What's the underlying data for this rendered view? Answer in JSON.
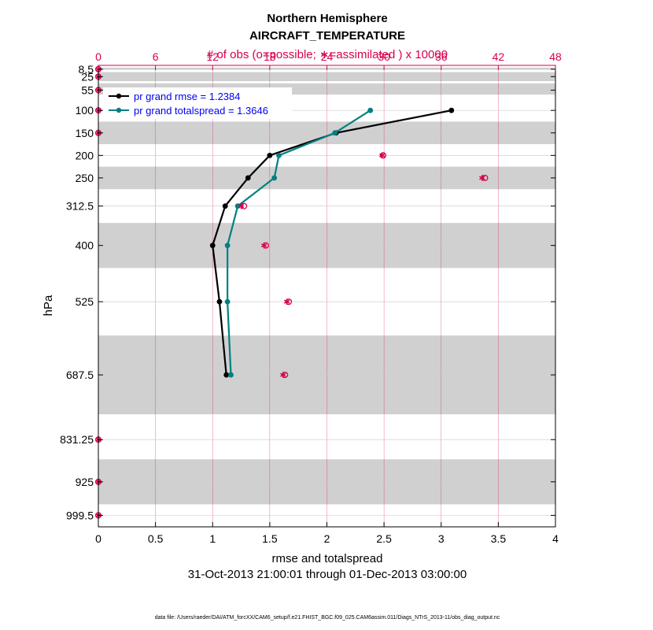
{
  "colors": {
    "rmse": "#000000",
    "spread": "#008080",
    "obs": "#d6004f",
    "band": "#d0d0d0",
    "grid_bottom": "#cfcfcf",
    "legend_text": "#0000ee"
  },
  "footer": "data file: /Users/raeder/DAI/ATM_forcXX/CAM6_setup/f.e21.FHIST_BGC.f09_025.CAM6assim.011/Diags_NTrS_2013-11/obs_diag_output.nc",
  "chart_data": {
    "type": "line",
    "title": "Northern Hemisphere",
    "subtitle": "AIRCRAFT_TEMPERATURE",
    "top_axis_label": "# of obs (o=possible; ∗=assimilated ) x 10000",
    "xlabel": "rmse and totalspread",
    "ylabel": "hPa",
    "date_range": "31-Oct-2013 21:00:01 through 01-Dec-2013 03:00:00",
    "xlim": [
      0,
      4
    ],
    "x_ticks": [
      "0",
      "0.5",
      "1",
      "1.5",
      "2",
      "2.5",
      "3",
      "3.5",
      "4"
    ],
    "top_xlim": [
      0,
      48
    ],
    "top_ticks": [
      "0",
      "6",
      "12",
      "18",
      "24",
      "30",
      "36",
      "42",
      "48"
    ],
    "levels": [
      8.5,
      25,
      55,
      100,
      150,
      200,
      250,
      312.5,
      400,
      525,
      687.5,
      831.25,
      925,
      999.5
    ],
    "level_labels": [
      "8.5",
      "25",
      "55",
      "100",
      "150",
      "200",
      "250",
      "312.5",
      "400",
      "525",
      "687.5",
      "831.25",
      "925",
      "999.5"
    ],
    "ylim_top": 0,
    "ylim_bottom": 1025,
    "shaded_layers": [
      [
        5,
        10
      ],
      [
        15,
        35
      ],
      [
        40,
        65
      ],
      [
        125,
        175
      ],
      [
        225,
        275
      ],
      [
        350,
        450
      ],
      [
        600,
        775
      ],
      [
        875,
        975
      ]
    ],
    "series": [
      {
        "name": "rmse",
        "legend": "pr grand rmse = 1.2384",
        "values": [
          null,
          null,
          null,
          3.09,
          2.08,
          1.5,
          1.31,
          1.11,
          1.0,
          1.06,
          1.12,
          null,
          null,
          null
        ]
      },
      {
        "name": "totalspread",
        "legend": "pr grand totalspread = 1.3646",
        "values": [
          null,
          null,
          null,
          2.38,
          2.07,
          1.58,
          1.54,
          1.22,
          1.13,
          1.13,
          1.16,
          null,
          null,
          null
        ]
      }
    ],
    "obs_possible_x10000": [
      0,
      0,
      0,
      0,
      0,
      29.9,
      40.6,
      15.3,
      17.6,
      20.0,
      19.6,
      0,
      0,
      0
    ],
    "obs_assimilated_x10000": [
      0,
      0,
      0,
      0,
      0,
      29.8,
      40.3,
      15.0,
      17.4,
      19.8,
      19.4,
      0,
      0,
      0
    ]
  }
}
